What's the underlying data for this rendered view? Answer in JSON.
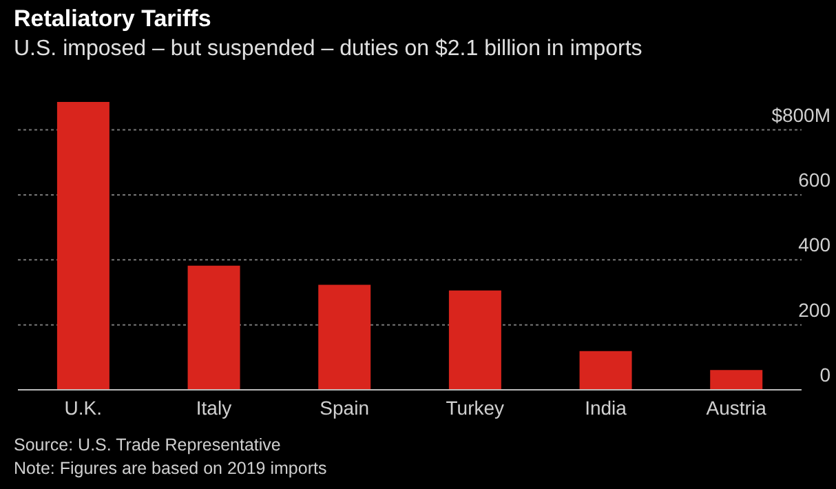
{
  "chart_data": {
    "type": "bar",
    "title": "Retaliatory Tariffs",
    "subtitle": "U.S. imposed – but suspended – duties on $2.1 billion in imports",
    "categories": [
      "U.K.",
      "Italy",
      "Spain",
      "Turkey",
      "India",
      "Austria"
    ],
    "values": [
      886,
      382,
      323,
      306,
      119,
      61
    ],
    "color": "#d9251d",
    "ylim": [
      0,
      886
    ],
    "yticks": [
      0,
      200,
      400,
      600,
      {
        "value": 800,
        "label": "$800M"
      }
    ],
    "grid": "y",
    "annotations": [
      "Source: U.S. Trade Representative",
      "Note: Figures are based on 2019 imports"
    ]
  }
}
